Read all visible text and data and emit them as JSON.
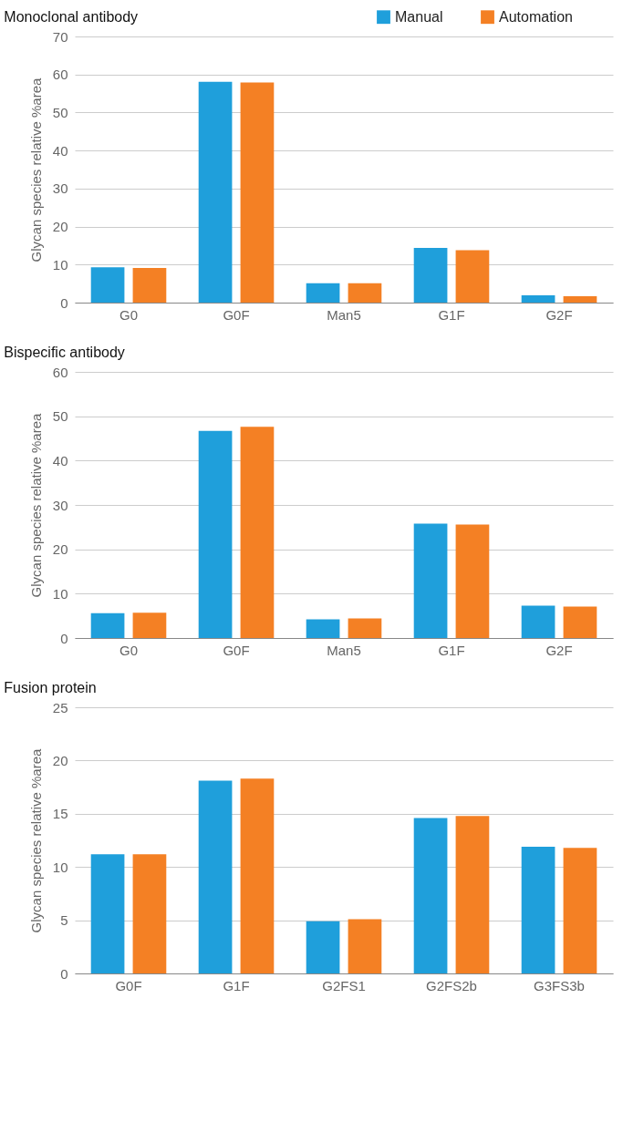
{
  "chart_data": [
    {
      "type": "bar",
      "title": "Monoclonal antibody",
      "ylabel": "Glycan species relative %area",
      "categories": [
        "G0",
        "G0F",
        "Man5",
        "G1F",
        "G2F"
      ],
      "series": [
        {
          "name": "Manual",
          "color": "#1f9fdb",
          "values": [
            9.3,
            58.1,
            5.1,
            14.4,
            1.9
          ]
        },
        {
          "name": "Automation",
          "color": "#f48024",
          "values": [
            9.1,
            57.9,
            5.1,
            13.8,
            1.7
          ]
        }
      ],
      "ylim": [
        0,
        70
      ],
      "yticks": [
        0,
        10,
        20,
        30,
        40,
        50,
        60,
        70
      ],
      "grid": "y",
      "legend": "top right"
    },
    {
      "type": "bar",
      "title": "Bispecific antibody",
      "ylabel": "Glycan species relative %area",
      "categories": [
        "G0",
        "G0F",
        "Man5",
        "G1F",
        "G2F"
      ],
      "series": [
        {
          "name": "Manual",
          "color": "#1f9fdb",
          "values": [
            5.6,
            46.7,
            4.2,
            25.8,
            7.3
          ]
        },
        {
          "name": "Automation",
          "color": "#f48024",
          "values": [
            5.7,
            47.6,
            4.4,
            25.6,
            7.1
          ]
        }
      ],
      "ylim": [
        0,
        60
      ],
      "yticks": [
        0,
        10,
        20,
        30,
        40,
        50,
        60
      ],
      "grid": "y",
      "legend": false
    },
    {
      "type": "bar",
      "title": "Fusion protein",
      "ylabel": "Glycan species relative %area",
      "categories": [
        "G0F",
        "G1F",
        "G2FS1",
        "G2FS2b",
        "G3FS3b"
      ],
      "series": [
        {
          "name": "Manual",
          "color": "#1f9fdb",
          "values": [
            11.2,
            18.1,
            4.9,
            14.6,
            11.9
          ]
        },
        {
          "name": "Automation",
          "color": "#f48024",
          "values": [
            11.2,
            18.3,
            5.1,
            14.8,
            11.8
          ]
        }
      ],
      "ylim": [
        0,
        25
      ],
      "yticks": [
        0,
        5,
        10,
        15,
        20,
        25
      ],
      "grid": "y",
      "legend": false
    }
  ]
}
